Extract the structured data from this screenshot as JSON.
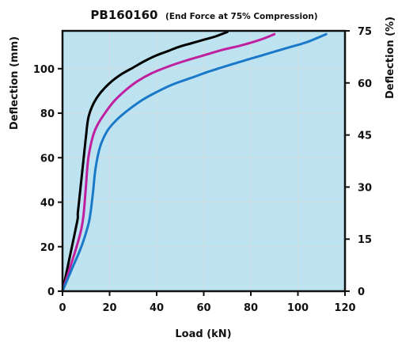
{
  "chart_data": {
    "type": "line",
    "title": "PB160160",
    "subtitle": "(End Force at 75% Compression)",
    "xlabel": "Load (kN)",
    "ylabel": "Deflection (mm)",
    "y2label": "Deflection (%)",
    "xlim": [
      0,
      120
    ],
    "ylim": [
      0,
      117
    ],
    "y2lim": [
      0,
      75
    ],
    "xticks": [
      0,
      20,
      40,
      60,
      80,
      100,
      120
    ],
    "yticks": [
      0,
      20,
      40,
      60,
      80,
      100
    ],
    "y2ticks": [
      0,
      15,
      30,
      45,
      60,
      75
    ],
    "grid": true,
    "legend": "none",
    "plot_background": "#bde3f0",
    "series": [
      {
        "color": "#000000",
        "x": [
          0,
          2,
          4,
          6,
          6.5,
          6.5,
          7,
          8,
          9,
          10,
          11,
          13,
          16,
          20,
          25,
          30,
          35,
          40,
          45,
          50,
          55,
          60,
          65,
          70
        ],
        "y": [
          0,
          10,
          20,
          30,
          33,
          35,
          40,
          50,
          60,
          70,
          78,
          84,
          89,
          93.5,
          97.5,
          100.5,
          103.5,
          106,
          108,
          110,
          111.5,
          113,
          114.5,
          116.5
        ]
      },
      {
        "color": "#c020a0",
        "x": [
          0,
          3,
          6,
          8,
          9,
          10,
          11,
          13,
          15,
          18,
          22,
          27,
          32,
          38,
          45,
          52,
          60,
          68,
          76,
          84,
          90
        ],
        "y": [
          0,
          10,
          20,
          28,
          35,
          48,
          60,
          70,
          75,
          80,
          85.5,
          90.5,
          94.5,
          98,
          101,
          103.5,
          106,
          108.5,
          110.5,
          113,
          115.5
        ]
      },
      {
        "color": "#1a78c8",
        "x": [
          0,
          4,
          8,
          11,
          12,
          13,
          14,
          16,
          19,
          23,
          28,
          34,
          40,
          47,
          55,
          63,
          72,
          80,
          88,
          96,
          104,
          112
        ],
        "y": [
          0,
          10,
          20,
          30,
          36,
          45,
          55,
          65,
          72,
          77,
          81.5,
          86,
          89.5,
          93,
          96,
          99,
          102,
          104.5,
          107,
          109.5,
          112,
          115.5
        ]
      }
    ]
  }
}
